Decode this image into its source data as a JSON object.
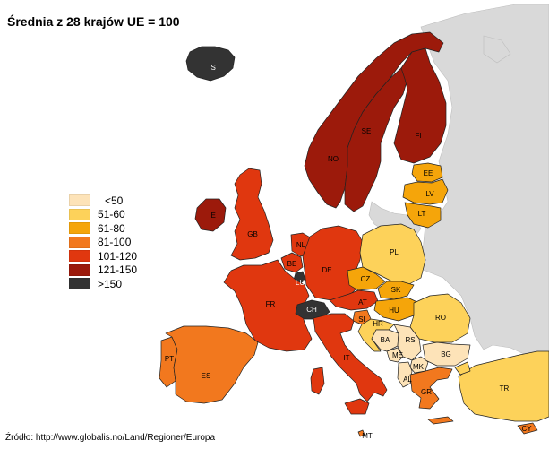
{
  "title": "Średnia z 28 krajów UE = 100",
  "source": "Źródło: http://www.globalis.no/Land/Regioner/Europa",
  "legend": [
    {
      "label": "<50",
      "color": "#fde3b8"
    },
    {
      "label": "51-60",
      "color": "#fdd25a"
    },
    {
      "label": "61-80",
      "color": "#f5a50a"
    },
    {
      "label": "81-100",
      "color": "#f2781e"
    },
    {
      "label": "101-120",
      "color": "#e0370f"
    },
    {
      "label": "121-150",
      "color": "#9c1a0b"
    },
    {
      "label": ">150",
      "color": "#333333"
    }
  ],
  "countries": [
    {
      "code": "IS",
      "class": ">150"
    },
    {
      "code": "NO",
      "class": "121-150"
    },
    {
      "code": "SE",
      "class": "121-150"
    },
    {
      "code": "FI",
      "class": "121-150"
    },
    {
      "code": "EE",
      "class": "61-80"
    },
    {
      "code": "LV",
      "class": "61-80"
    },
    {
      "code": "LT",
      "class": "61-80"
    },
    {
      "code": "IE",
      "class": "121-150"
    },
    {
      "code": "GB",
      "class": "101-120"
    },
    {
      "code": "NL",
      "class": "101-120"
    },
    {
      "code": "BE",
      "class": "101-120"
    },
    {
      "code": "LU",
      "class": ">150"
    },
    {
      "code": "DE",
      "class": "101-120"
    },
    {
      "code": "PL",
      "class": "51-60"
    },
    {
      "code": "FR",
      "class": "101-120"
    },
    {
      "code": "CZ",
      "class": "61-80"
    },
    {
      "code": "SK",
      "class": "61-80"
    },
    {
      "code": "AT",
      "class": "101-120"
    },
    {
      "code": "HU",
      "class": "61-80"
    },
    {
      "code": "CH",
      "class": ">150"
    },
    {
      "code": "SI",
      "class": "81-100"
    },
    {
      "code": "HR",
      "class": "51-60"
    },
    {
      "code": "RO",
      "class": "51-60"
    },
    {
      "code": "BA",
      "class": "<50"
    },
    {
      "code": "RS",
      "class": "<50"
    },
    {
      "code": "ME",
      "class": "<50"
    },
    {
      "code": "BG",
      "class": "<50"
    },
    {
      "code": "MK",
      "class": "<50"
    },
    {
      "code": "AL",
      "class": "<50"
    },
    {
      "code": "GR",
      "class": "81-100"
    },
    {
      "code": "PT",
      "class": "81-100"
    },
    {
      "code": "ES",
      "class": "81-100"
    },
    {
      "code": "IT",
      "class": "101-120"
    },
    {
      "code": "MT",
      "class": "81-100"
    },
    {
      "code": "TR",
      "class": "51-60"
    },
    {
      "code": "CY",
      "class": "81-100"
    }
  ],
  "colors": {
    "non_member": "#d9d9d9",
    "background": "#ffffff",
    "border": "#222222"
  }
}
